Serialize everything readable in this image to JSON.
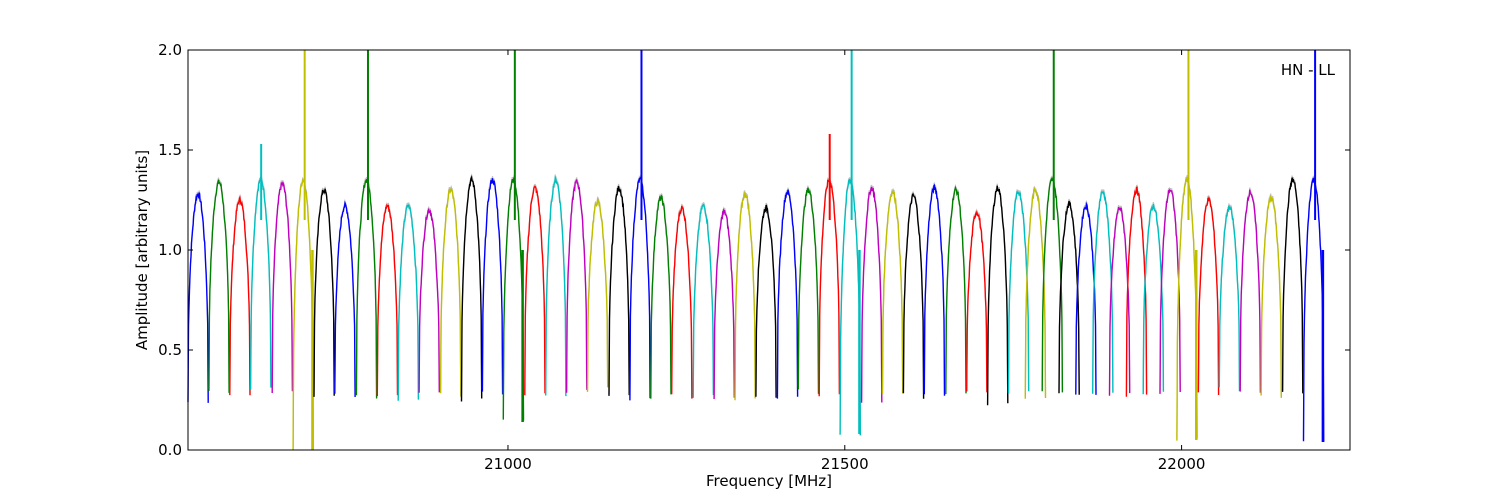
{
  "chart_data": {
    "type": "line",
    "title": "",
    "annotation": "HN - LL",
    "xlabel": "Frequency [MHz]",
    "ylabel": "Amplitude [arbitrary units]",
    "xlim": [
      20525,
      22250
    ],
    "ylim": [
      0,
      2.0
    ],
    "xticks": [
      21000,
      21500,
      22000
    ],
    "xtick_labels": [
      "21000",
      "21500",
      "22000"
    ],
    "yticks": [
      0.0,
      0.5,
      1.0,
      1.5,
      2.0
    ],
    "ytick_labels": [
      "0.0",
      "0.5",
      "1.0",
      "1.5",
      "2.0"
    ],
    "grid": false,
    "legend": "none",
    "background_series_color": "#bfbfbf",
    "color_cycle": [
      "#0000ff",
      "#008000",
      "#ff0000",
      "#00bfbf",
      "#bf00bf",
      "#bfbf00",
      "#000000"
    ],
    "channel_width_mhz": 31.25,
    "channels": [
      {
        "start": 20525,
        "edge_low": 0.24,
        "peak": 1.28,
        "edge_high": 0.24,
        "color": "#0000ff"
      },
      {
        "start": 20556,
        "edge_low": 0.3,
        "peak": 1.34,
        "edge_high": 0.3,
        "color": "#008000"
      },
      {
        "start": 20587,
        "edge_low": 0.28,
        "peak": 1.25,
        "edge_high": 0.28,
        "color": "#ff0000"
      },
      {
        "start": 20618,
        "edge_low": 0.3,
        "peak": 1.53,
        "edge_high": 0.3,
        "color": "#00bfbf"
      },
      {
        "start": 20650,
        "edge_low": 0.28,
        "peak": 1.33,
        "edge_high": 0.28,
        "color": "#bf00bf"
      },
      {
        "start": 20681,
        "edge_low": 0.0,
        "peak": 2.0,
        "edge_high": 0.0,
        "color": "#bfbf00"
      },
      {
        "start": 20712,
        "edge_low": 0.27,
        "peak": 1.3,
        "edge_high": 0.27,
        "color": "#000000"
      },
      {
        "start": 20743,
        "edge_low": 0.28,
        "peak": 1.22,
        "edge_high": 0.28,
        "color": "#0000ff"
      },
      {
        "start": 20775,
        "edge_low": 0.27,
        "peak": 2.0,
        "edge_high": 0.27,
        "color": "#008000"
      },
      {
        "start": 20806,
        "edge_low": 0.28,
        "peak": 1.22,
        "edge_high": 0.28,
        "color": "#ff0000"
      },
      {
        "start": 20837,
        "edge_low": 0.26,
        "peak": 1.22,
        "edge_high": 0.26,
        "color": "#00bfbf"
      },
      {
        "start": 20868,
        "edge_low": 0.28,
        "peak": 1.2,
        "edge_high": 0.28,
        "color": "#bf00bf"
      },
      {
        "start": 20900,
        "edge_low": 0.27,
        "peak": 1.3,
        "edge_high": 0.27,
        "color": "#bfbf00"
      },
      {
        "start": 20931,
        "edge_low": 0.25,
        "peak": 1.38,
        "edge_high": 0.25,
        "color": "#000000"
      },
      {
        "start": 20962,
        "edge_low": 0.28,
        "peak": 1.36,
        "edge_high": 0.28,
        "color": "#0000ff"
      },
      {
        "start": 20993,
        "edge_low": 0.14,
        "peak": 2.0,
        "edge_high": 0.14,
        "color": "#008000"
      },
      {
        "start": 21025,
        "edge_low": 0.28,
        "peak": 1.31,
        "edge_high": 0.28,
        "color": "#ff0000"
      },
      {
        "start": 21056,
        "edge_low": 0.28,
        "peak": 1.35,
        "edge_high": 0.28,
        "color": "#00bfbf"
      },
      {
        "start": 21087,
        "edge_low": 0.3,
        "peak": 1.34,
        "edge_high": 0.3,
        "color": "#bf00bf"
      },
      {
        "start": 21118,
        "edge_low": 0.3,
        "peak": 1.24,
        "edge_high": 0.3,
        "color": "#bfbf00"
      },
      {
        "start": 21150,
        "edge_low": 0.26,
        "peak": 1.31,
        "edge_high": 0.26,
        "color": "#000000"
      },
      {
        "start": 21181,
        "edge_low": 0.25,
        "peak": 2.0,
        "edge_high": 0.25,
        "color": "#0000ff"
      },
      {
        "start": 21212,
        "edge_low": 0.27,
        "peak": 1.26,
        "edge_high": 0.27,
        "color": "#008000"
      },
      {
        "start": 21243,
        "edge_low": 0.27,
        "peak": 1.21,
        "edge_high": 0.27,
        "color": "#ff0000"
      },
      {
        "start": 21275,
        "edge_low": 0.27,
        "peak": 1.22,
        "edge_high": 0.27,
        "color": "#00bfbf"
      },
      {
        "start": 21306,
        "edge_low": 0.27,
        "peak": 1.19,
        "edge_high": 0.27,
        "color": "#bf00bf"
      },
      {
        "start": 21337,
        "edge_low": 0.26,
        "peak": 1.28,
        "edge_high": 0.26,
        "color": "#bfbf00"
      },
      {
        "start": 21368,
        "edge_low": 0.27,
        "peak": 1.21,
        "edge_high": 0.27,
        "color": "#000000"
      },
      {
        "start": 21400,
        "edge_low": 0.27,
        "peak": 1.29,
        "edge_high": 0.27,
        "color": "#0000ff"
      },
      {
        "start": 21431,
        "edge_low": 0.29,
        "peak": 1.3,
        "edge_high": 0.29,
        "color": "#008000"
      },
      {
        "start": 21462,
        "edge_low": 0.28,
        "peak": 1.58,
        "edge_high": 0.28,
        "color": "#ff0000"
      },
      {
        "start": 21493,
        "edge_low": 0.08,
        "peak": 2.0,
        "edge_high": 0.08,
        "color": "#00bfbf"
      },
      {
        "start": 21525,
        "edge_low": 0.24,
        "peak": 1.31,
        "edge_high": 0.24,
        "color": "#bf00bf"
      },
      {
        "start": 21556,
        "edge_low": 0.28,
        "peak": 1.29,
        "edge_high": 0.28,
        "color": "#bfbf00"
      },
      {
        "start": 21587,
        "edge_low": 0.27,
        "peak": 1.27,
        "edge_high": 0.27,
        "color": "#000000"
      },
      {
        "start": 21618,
        "edge_low": 0.28,
        "peak": 1.31,
        "edge_high": 0.28,
        "color": "#0000ff"
      },
      {
        "start": 21650,
        "edge_low": 0.28,
        "peak": 1.3,
        "edge_high": 0.28,
        "color": "#008000"
      },
      {
        "start": 21681,
        "edge_low": 0.28,
        "peak": 1.19,
        "edge_high": 0.28,
        "color": "#ff0000"
      },
      {
        "start": 21712,
        "edge_low": 0.23,
        "peak": 1.31,
        "edge_high": 0.23,
        "color": "#000000"
      },
      {
        "start": 21743,
        "edge_low": 0.29,
        "peak": 1.29,
        "edge_high": 0.29,
        "color": "#00bfbf"
      },
      {
        "start": 21768,
        "edge_low": 0.26,
        "peak": 1.3,
        "edge_high": 0.26,
        "color": "#bfbf00"
      },
      {
        "start": 21793,
        "edge_low": 0.28,
        "peak": 2.0,
        "edge_high": 0.28,
        "color": "#008000"
      },
      {
        "start": 21818,
        "edge_low": 0.27,
        "peak": 1.23,
        "edge_high": 0.27,
        "color": "#000000"
      },
      {
        "start": 21843,
        "edge_low": 0.28,
        "peak": 1.22,
        "edge_high": 0.28,
        "color": "#0000ff"
      },
      {
        "start": 21868,
        "edge_low": 0.28,
        "peak": 1.29,
        "edge_high": 0.28,
        "color": "#00bfbf"
      },
      {
        "start": 21893,
        "edge_low": 0.27,
        "peak": 1.21,
        "edge_high": 0.27,
        "color": "#bf00bf"
      },
      {
        "start": 21918,
        "edge_low": 0.28,
        "peak": 1.3,
        "edge_high": 0.28,
        "color": "#ff0000"
      },
      {
        "start": 21943,
        "edge_low": 0.29,
        "peak": 1.22,
        "edge_high": 0.29,
        "color": "#00bfbf"
      },
      {
        "start": 21968,
        "edge_low": 0.29,
        "peak": 1.3,
        "edge_high": 0.29,
        "color": "#bf00bf"
      },
      {
        "start": 21993,
        "edge_low": 0.05,
        "peak": 2.0,
        "edge_high": 0.05,
        "color": "#bfbf00"
      },
      {
        "start": 22025,
        "edge_low": 0.28,
        "peak": 1.25,
        "edge_high": 0.28,
        "color": "#ff0000"
      },
      {
        "start": 22056,
        "edge_low": 0.3,
        "peak": 1.21,
        "edge_high": 0.3,
        "color": "#00bfbf"
      },
      {
        "start": 22087,
        "edge_low": 0.29,
        "peak": 1.29,
        "edge_high": 0.29,
        "color": "#bf00bf"
      },
      {
        "start": 22118,
        "edge_low": 0.27,
        "peak": 1.26,
        "edge_high": 0.27,
        "color": "#bfbf00"
      },
      {
        "start": 22150,
        "edge_low": 0.28,
        "peak": 1.37,
        "edge_high": 0.28,
        "color": "#000000"
      },
      {
        "start": 22181,
        "edge_low": 0.04,
        "peak": 2.0,
        "edge_high": 0.04,
        "color": "#0000ff"
      }
    ]
  }
}
